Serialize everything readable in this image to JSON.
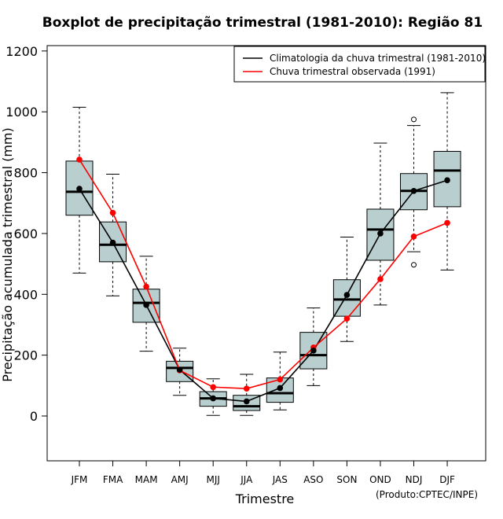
{
  "chart_data": {
    "type": "boxplot",
    "title": "Boxplot de precipitação trimestral (1981-2010): Região 81",
    "xlabel": "Trimestre",
    "ylabel": "Precipitação acumulada trimestral (mm)",
    "ylim": [
      -150,
      1220
    ],
    "yticks": [
      0,
      200,
      400,
      600,
      800,
      1000,
      1200
    ],
    "categories": [
      "JFM",
      "FMA",
      "MAM",
      "AMJ",
      "MJJ",
      "JJA",
      "JAS",
      "ASO",
      "SON",
      "OND",
      "NDJ",
      "DJF"
    ],
    "boxes": [
      {
        "min": 470,
        "q1": 660,
        "median": 737,
        "q3": 838,
        "max": 1015,
        "outliers": []
      },
      {
        "min": 395,
        "q1": 507,
        "median": 563,
        "q3": 638,
        "max": 795,
        "outliers": []
      },
      {
        "min": 213,
        "q1": 308,
        "median": 372,
        "q3": 417,
        "max": 525,
        "outliers": []
      },
      {
        "min": 68,
        "q1": 113,
        "median": 158,
        "q3": 180,
        "max": 223,
        "outliers": []
      },
      {
        "min": 2,
        "q1": 32,
        "median": 58,
        "q3": 80,
        "max": 122,
        "outliers": []
      },
      {
        "min": 2,
        "q1": 18,
        "median": 32,
        "q3": 68,
        "max": 137,
        "outliers": []
      },
      {
        "min": 20,
        "q1": 45,
        "median": 75,
        "q3": 125,
        "max": 210,
        "outliers": []
      },
      {
        "min": 100,
        "q1": 155,
        "median": 200,
        "q3": 275,
        "max": 355,
        "outliers": []
      },
      {
        "min": 245,
        "q1": 328,
        "median": 383,
        "q3": 448,
        "max": 588,
        "outliers": []
      },
      {
        "min": 365,
        "q1": 512,
        "median": 613,
        "q3": 680,
        "max": 897,
        "outliers": []
      },
      {
        "min": 540,
        "q1": 678,
        "median": 740,
        "q3": 797,
        "max": 955,
        "outliers": [
          975,
          497
        ]
      },
      {
        "min": 480,
        "q1": 688,
        "median": 807,
        "q3": 870,
        "max": 1063,
        "outliers": []
      }
    ],
    "series": [
      {
        "name": "Climatologia da chuva trimestral (1981-2010)",
        "color": "#000000",
        "values": [
          747,
          570,
          365,
          152,
          58,
          48,
          92,
          215,
          398,
          600,
          740,
          775
        ]
      },
      {
        "name": "Chuva trimestral observada (1991)",
        "color": "#ff0000",
        "values": [
          843,
          668,
          425,
          150,
          95,
          90,
          120,
          225,
          320,
          450,
          590,
          635
        ]
      }
    ],
    "box_fill": "#b9cfcf",
    "legend_position": "top-right",
    "credit": "(Produto:CPTEC/INPE)"
  }
}
